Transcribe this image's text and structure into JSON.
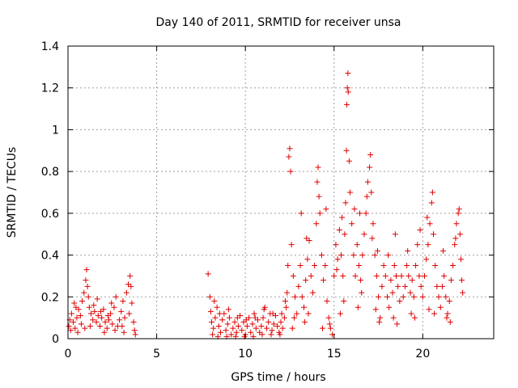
{
  "chart_data": {
    "type": "scatter",
    "title": "Day 140 of 2011, SRMTID for receiver unsa",
    "xlabel": "GPS time / hours",
    "ylabel": "SRMTID / TECUs",
    "xlim": [
      0,
      24
    ],
    "ylim": [
      0,
      1.4
    ],
    "x_ticks": [
      0,
      5,
      10,
      15,
      20
    ],
    "x_tick_labels": [
      "0",
      "5",
      "10",
      "15",
      "20"
    ],
    "y_ticks": [
      0,
      0.2,
      0.4,
      0.6,
      0.8,
      1.0,
      1.2,
      1.4
    ],
    "y_tick_labels": [
      "0",
      "0.2",
      "0.4",
      "0.6",
      "0.8",
      "1",
      "1.2",
      "1.4"
    ],
    "grid": true,
    "marker": "+",
    "series": [
      {
        "name": "SRMTID",
        "color": "#e00000",
        "points": [
          [
            0.05,
            0.06
          ],
          [
            0.1,
            0.09
          ],
          [
            0.2,
            0.12
          ],
          [
            0.3,
            0.08
          ],
          [
            0.4,
            0.05
          ],
          [
            0.5,
            0.1
          ],
          [
            0.6,
            0.14
          ],
          [
            0.7,
            0.11
          ],
          [
            0.8,
            0.18
          ],
          [
            0.9,
            0.22
          ],
          [
            1.0,
            0.28
          ],
          [
            1.05,
            0.33
          ],
          [
            1.1,
            0.25
          ],
          [
            1.2,
            0.15
          ],
          [
            1.3,
            0.12
          ],
          [
            1.4,
            0.09
          ],
          [
            1.5,
            0.13
          ],
          [
            1.6,
            0.08
          ],
          [
            1.7,
            0.11
          ],
          [
            1.8,
            0.06
          ],
          [
            1.9,
            0.1
          ],
          [
            2.0,
            0.14
          ],
          [
            2.1,
            0.08
          ],
          [
            2.2,
            0.05
          ],
          [
            2.3,
            0.09
          ],
          [
            2.4,
            0.12
          ],
          [
            2.5,
            0.07
          ],
          [
            2.6,
            0.15
          ],
          [
            2.7,
            0.2
          ],
          [
            2.8,
            0.06
          ],
          [
            2.9,
            0.09
          ],
          [
            3.0,
            0.13
          ],
          [
            3.1,
            0.18
          ],
          [
            3.2,
            0.1
          ],
          [
            3.3,
            0.22
          ],
          [
            3.4,
            0.26
          ],
          [
            3.5,
            0.3
          ],
          [
            3.55,
            0.25
          ],
          [
            3.6,
            0.17
          ],
          [
            3.7,
            0.08
          ],
          [
            3.75,
            0.04
          ],
          [
            3.8,
            0.02
          ],
          [
            0.15,
            0.04
          ],
          [
            0.45,
            0.15
          ],
          [
            0.75,
            0.07
          ],
          [
            1.15,
            0.2
          ],
          [
            1.45,
            0.16
          ],
          [
            1.85,
            0.13
          ],
          [
            2.25,
            0.11
          ],
          [
            2.65,
            0.04
          ],
          [
            3.05,
            0.06
          ],
          [
            3.45,
            0.12
          ],
          [
            0.35,
            0.17
          ],
          [
            0.95,
            0.05
          ],
          [
            1.65,
            0.19
          ],
          [
            2.45,
            0.17
          ],
          [
            3.15,
            0.03
          ],
          [
            0.55,
            0.03
          ],
          [
            1.25,
            0.06
          ],
          [
            2.05,
            0.03
          ],
          [
            7.9,
            0.31
          ],
          [
            8.0,
            0.2
          ],
          [
            8.05,
            0.13
          ],
          [
            8.1,
            0.08
          ],
          [
            8.2,
            0.05
          ],
          [
            8.3,
            0.1
          ],
          [
            8.4,
            0.15
          ],
          [
            8.5,
            0.06
          ],
          [
            8.6,
            0.03
          ],
          [
            8.7,
            0.09
          ],
          [
            8.8,
            0.12
          ],
          [
            8.9,
            0.04
          ],
          [
            9.0,
            0.07
          ],
          [
            9.1,
            0.1
          ],
          [
            9.2,
            0.02
          ],
          [
            9.3,
            0.05
          ],
          [
            9.4,
            0.08
          ],
          [
            9.5,
            0.03
          ],
          [
            9.6,
            0.06
          ],
          [
            9.7,
            0.11
          ],
          [
            9.8,
            0.04
          ],
          [
            9.9,
            0.08
          ],
          [
            10.0,
            0.02
          ],
          [
            10.1,
            0.06
          ],
          [
            10.2,
            0.1
          ],
          [
            10.3,
            0.03
          ],
          [
            10.4,
            0.07
          ],
          [
            10.5,
            0.12
          ],
          [
            10.6,
            0.05
          ],
          [
            10.7,
            0.09
          ],
          [
            10.8,
            0.03
          ],
          [
            10.9,
            0.06
          ],
          [
            11.0,
            0.1
          ],
          [
            11.1,
            0.15
          ],
          [
            11.2,
            0.05
          ],
          [
            11.3,
            0.08
          ],
          [
            11.4,
            0.12
          ],
          [
            11.5,
            0.04
          ],
          [
            11.6,
            0.07
          ],
          [
            11.7,
            0.11
          ],
          [
            11.8,
            0.06
          ],
          [
            11.9,
            0.03
          ],
          [
            12.0,
            0.08
          ],
          [
            12.1,
            0.05
          ],
          [
            12.2,
            0.1
          ],
          [
            12.3,
            0.15
          ],
          [
            12.35,
            0.22
          ],
          [
            12.4,
            0.35
          ],
          [
            8.15,
            0.02
          ],
          [
            8.45,
            0.01
          ],
          [
            8.95,
            0.01
          ],
          [
            9.45,
            0.01
          ],
          [
            9.95,
            0.01
          ],
          [
            10.45,
            0.01
          ],
          [
            10.95,
            0.02
          ],
          [
            11.45,
            0.02
          ],
          [
            11.95,
            0.02
          ],
          [
            12.45,
            0.87
          ],
          [
            12.5,
            0.91
          ],
          [
            12.55,
            0.8
          ],
          [
            12.6,
            0.45
          ],
          [
            12.7,
            0.3
          ],
          [
            12.8,
            0.2
          ],
          [
            12.9,
            0.12
          ],
          [
            13.0,
            0.25
          ],
          [
            13.1,
            0.35
          ],
          [
            13.2,
            0.2
          ],
          [
            13.3,
            0.15
          ],
          [
            13.4,
            0.28
          ],
          [
            13.5,
            0.38
          ],
          [
            13.6,
            0.47
          ],
          [
            13.7,
            0.3
          ],
          [
            13.8,
            0.22
          ],
          [
            13.9,
            0.35
          ],
          [
            14.0,
            0.55
          ],
          [
            14.05,
            0.75
          ],
          [
            14.1,
            0.82
          ],
          [
            14.2,
            0.6
          ],
          [
            14.3,
            0.4
          ],
          [
            14.4,
            0.28
          ],
          [
            14.5,
            0.35
          ],
          [
            14.6,
            0.18
          ],
          [
            14.7,
            0.1
          ],
          [
            14.8,
            0.05
          ],
          [
            14.9,
            0.02
          ],
          [
            15.0,
            0.3
          ],
          [
            15.1,
            0.45
          ],
          [
            15.2,
            0.38
          ],
          [
            15.3,
            0.52
          ],
          [
            15.4,
            0.4
          ],
          [
            15.5,
            0.3
          ],
          [
            15.6,
            0.5
          ],
          [
            15.65,
            0.65
          ],
          [
            15.7,
            0.9
          ],
          [
            15.72,
            1.12
          ],
          [
            15.75,
            1.2
          ],
          [
            15.78,
            1.27
          ],
          [
            15.8,
            1.18
          ],
          [
            15.85,
            0.85
          ],
          [
            15.9,
            0.7
          ],
          [
            16.0,
            0.55
          ],
          [
            16.1,
            0.4
          ],
          [
            16.2,
            0.3
          ],
          [
            16.3,
            0.45
          ],
          [
            16.4,
            0.35
          ],
          [
            16.5,
            0.28
          ],
          [
            16.6,
            0.4
          ],
          [
            16.7,
            0.5
          ],
          [
            16.8,
            0.6
          ],
          [
            16.9,
            0.75
          ],
          [
            17.0,
            0.82
          ],
          [
            17.05,
            0.88
          ],
          [
            17.1,
            0.7
          ],
          [
            17.2,
            0.55
          ],
          [
            17.3,
            0.4
          ],
          [
            17.4,
            0.3
          ],
          [
            17.5,
            0.2
          ],
          [
            17.6,
            0.1
          ],
          [
            17.7,
            0.25
          ],
          [
            17.8,
            0.35
          ],
          [
            17.9,
            0.3
          ],
          [
            18.0,
            0.2
          ],
          [
            18.1,
            0.15
          ],
          [
            18.2,
            0.28
          ],
          [
            18.3,
            0.22
          ],
          [
            18.4,
            0.35
          ],
          [
            18.5,
            0.3
          ],
          [
            18.6,
            0.25
          ],
          [
            18.7,
            0.18
          ],
          [
            18.8,
            0.3
          ],
          [
            18.9,
            0.2
          ],
          [
            19.0,
            0.25
          ],
          [
            19.1,
            0.35
          ],
          [
            19.2,
            0.3
          ],
          [
            19.3,
            0.22
          ],
          [
            19.4,
            0.28
          ],
          [
            19.5,
            0.2
          ],
          [
            19.6,
            0.35
          ],
          [
            19.7,
            0.45
          ],
          [
            19.8,
            0.3
          ],
          [
            19.9,
            0.25
          ],
          [
            20.0,
            0.2
          ],
          [
            20.1,
            0.3
          ],
          [
            20.2,
            0.38
          ],
          [
            20.3,
            0.45
          ],
          [
            20.4,
            0.55
          ],
          [
            20.5,
            0.65
          ],
          [
            20.55,
            0.7
          ],
          [
            20.6,
            0.5
          ],
          [
            20.7,
            0.35
          ],
          [
            20.8,
            0.25
          ],
          [
            20.9,
            0.2
          ],
          [
            21.0,
            0.15
          ],
          [
            21.1,
            0.25
          ],
          [
            21.2,
            0.3
          ],
          [
            21.3,
            0.2
          ],
          [
            21.4,
            0.12
          ],
          [
            21.5,
            0.18
          ],
          [
            21.6,
            0.28
          ],
          [
            21.7,
            0.35
          ],
          [
            21.8,
            0.45
          ],
          [
            21.9,
            0.55
          ],
          [
            22.0,
            0.6
          ],
          [
            22.05,
            0.62
          ],
          [
            22.1,
            0.5
          ],
          [
            22.15,
            0.38
          ],
          [
            22.2,
            0.28
          ],
          [
            22.25,
            0.22
          ],
          [
            13.15,
            0.6
          ],
          [
            13.45,
            0.48
          ],
          [
            14.15,
            0.68
          ],
          [
            14.55,
            0.62
          ],
          [
            15.15,
            0.33
          ],
          [
            15.45,
            0.58
          ],
          [
            16.15,
            0.62
          ],
          [
            16.45,
            0.6
          ],
          [
            16.85,
            0.68
          ],
          [
            17.15,
            0.48
          ],
          [
            17.45,
            0.42
          ],
          [
            18.05,
            0.4
          ],
          [
            18.45,
            0.5
          ],
          [
            19.15,
            0.42
          ],
          [
            19.85,
            0.52
          ],
          [
            20.25,
            0.58
          ],
          [
            21.15,
            0.42
          ],
          [
            21.85,
            0.48
          ],
          [
            13.35,
            0.08
          ],
          [
            14.35,
            0.05
          ],
          [
            15.35,
            0.12
          ],
          [
            16.35,
            0.15
          ],
          [
            17.35,
            0.14
          ],
          [
            18.35,
            0.1
          ],
          [
            19.35,
            0.12
          ],
          [
            20.35,
            0.14
          ],
          [
            21.35,
            0.1
          ],
          [
            12.65,
            0.05
          ],
          [
            12.75,
            0.1
          ],
          [
            13.55,
            0.12
          ],
          [
            14.75,
            0.07
          ],
          [
            15.55,
            0.18
          ],
          [
            16.55,
            0.22
          ],
          [
            17.55,
            0.08
          ],
          [
            18.55,
            0.07
          ],
          [
            19.55,
            0.1
          ],
          [
            20.65,
            0.12
          ],
          [
            21.55,
            0.08
          ],
          [
            8.25,
            0.18
          ],
          [
            8.55,
            0.12
          ],
          [
            9.05,
            0.14
          ],
          [
            9.55,
            0.1
          ],
          [
            10.05,
            0.09
          ],
          [
            10.55,
            0.1
          ],
          [
            11.05,
            0.14
          ],
          [
            11.55,
            0.12
          ],
          [
            12.05,
            0.12
          ],
          [
            12.25,
            0.18
          ]
        ]
      }
    ]
  }
}
